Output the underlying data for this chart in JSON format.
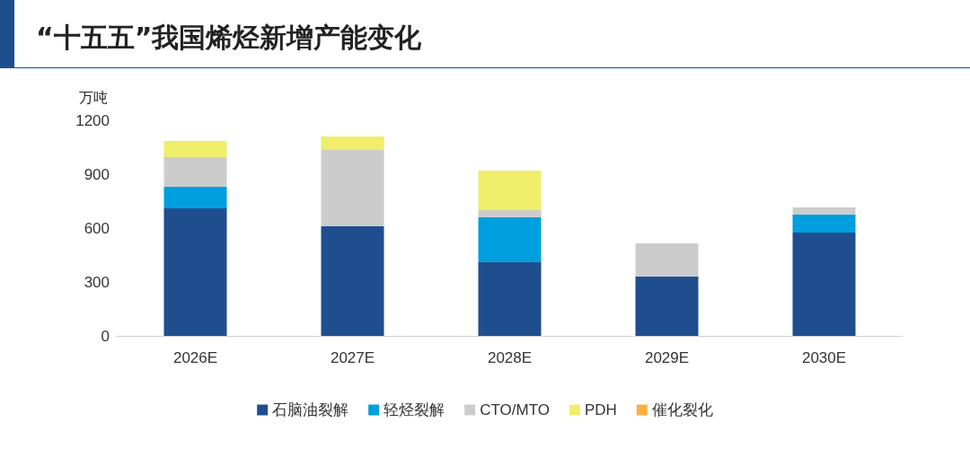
{
  "chart_data": {
    "type": "bar",
    "title": "“十五五”我国烯烃新增产能变化",
    "ylabel": "万吨",
    "categories": [
      "2026E",
      "2027E",
      "2028E",
      "2029E",
      "2030E"
    ],
    "stacked": true,
    "ylim": [
      0,
      1200
    ],
    "yticks": [
      0,
      300,
      600,
      900,
      1200
    ],
    "grid": false,
    "legend": "bottom",
    "series": [
      {
        "name": "石脑油裂解",
        "color": "#1f4e8f",
        "values": [
          710,
          610,
          410,
          330,
          575
        ]
      },
      {
        "name": "轻烃裂解",
        "color": "#009fdf",
        "values": [
          120,
          0,
          250,
          0,
          100
        ]
      },
      {
        "name": "CTO/MTO",
        "color": "#cccccc",
        "values": [
          165,
          425,
          40,
          185,
          40
        ]
      },
      {
        "name": "PDH",
        "color": "#f0ee6a",
        "values": [
          90,
          75,
          220,
          0,
          0
        ]
      },
      {
        "name": "催化裂化",
        "color": "#fbb040",
        "values": [
          0,
          0,
          0,
          0,
          0
        ]
      }
    ]
  }
}
